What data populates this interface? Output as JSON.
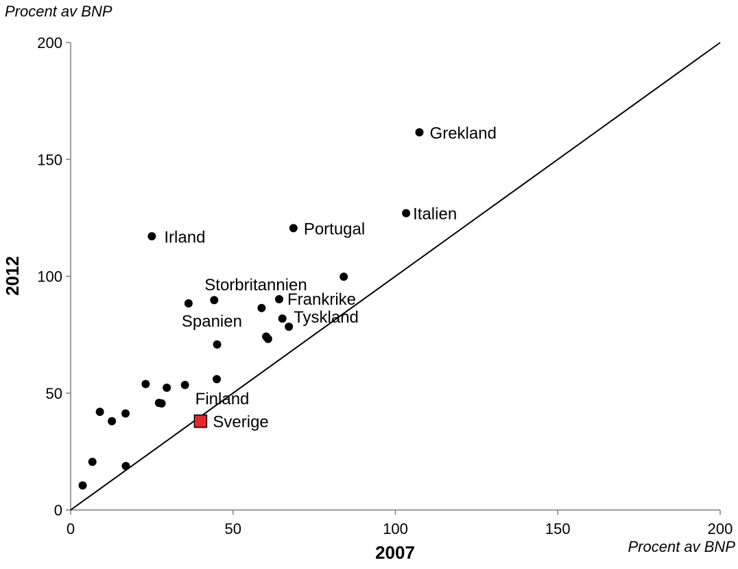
{
  "chart_data": {
    "type": "scatter",
    "title": "",
    "xlabel": "2007",
    "ylabel": "2012",
    "x_unit_label": "Procent av BNP",
    "y_unit_label": "Procent av BNP",
    "xlim": [
      0,
      200
    ],
    "ylim": [
      0,
      200
    ],
    "xticks": [
      "0",
      "50",
      "100",
      "150",
      "200"
    ],
    "yticks": [
      "0",
      "50",
      "100",
      "150",
      "200"
    ],
    "grid": false,
    "reference_line": {
      "from": [
        0,
        0
      ],
      "to": [
        200,
        200
      ]
    },
    "colors": {
      "points": "#000000",
      "highlight": "#e8262a",
      "highlight_border": "#000000"
    },
    "points": [
      {
        "x": 107.4,
        "y": 161.6,
        "label": "Grekland"
      },
      {
        "x": 103.3,
        "y": 127.0,
        "label": "Italien"
      },
      {
        "x": 68.6,
        "y": 120.6,
        "label": "Portugal"
      },
      {
        "x": 25.0,
        "y": 117.1,
        "label": "Irland"
      },
      {
        "x": 84.1,
        "y": 99.8,
        "label": ""
      },
      {
        "x": 44.2,
        "y": 89.8,
        "label": "Storbritannien"
      },
      {
        "x": 64.2,
        "y": 90.2,
        "label": "Frankrike"
      },
      {
        "x": 36.3,
        "y": 88.4,
        "label": "Spanien"
      },
      {
        "x": 58.8,
        "y": 86.4,
        "label": ""
      },
      {
        "x": 65.2,
        "y": 81.9,
        "label": ""
      },
      {
        "x": 67.2,
        "y": 78.4,
        "label": "Tyskland"
      },
      {
        "x": 60.2,
        "y": 74.2,
        "label": ""
      },
      {
        "x": 60.8,
        "y": 73.2,
        "label": ""
      },
      {
        "x": 45.1,
        "y": 70.8,
        "label": ""
      },
      {
        "x": 45.0,
        "y": 56.0,
        "label": ""
      },
      {
        "x": 23.1,
        "y": 53.9,
        "label": ""
      },
      {
        "x": 35.2,
        "y": 53.5,
        "label": "Finland"
      },
      {
        "x": 29.6,
        "y": 52.3,
        "label": ""
      },
      {
        "x": 27.2,
        "y": 45.8,
        "label": ""
      },
      {
        "x": 28.0,
        "y": 45.6,
        "label": ""
      },
      {
        "x": 9.0,
        "y": 42.0,
        "label": ""
      },
      {
        "x": 16.9,
        "y": 41.3,
        "label": ""
      },
      {
        "x": 12.7,
        "y": 38.0,
        "label": ""
      },
      {
        "x": 40.0,
        "y": 38.0,
        "label": "Sverige",
        "highlight": true
      },
      {
        "x": 6.7,
        "y": 20.6,
        "label": ""
      },
      {
        "x": 17.0,
        "y": 18.8,
        "label": ""
      },
      {
        "x": 3.7,
        "y": 10.5,
        "label": ""
      }
    ]
  }
}
